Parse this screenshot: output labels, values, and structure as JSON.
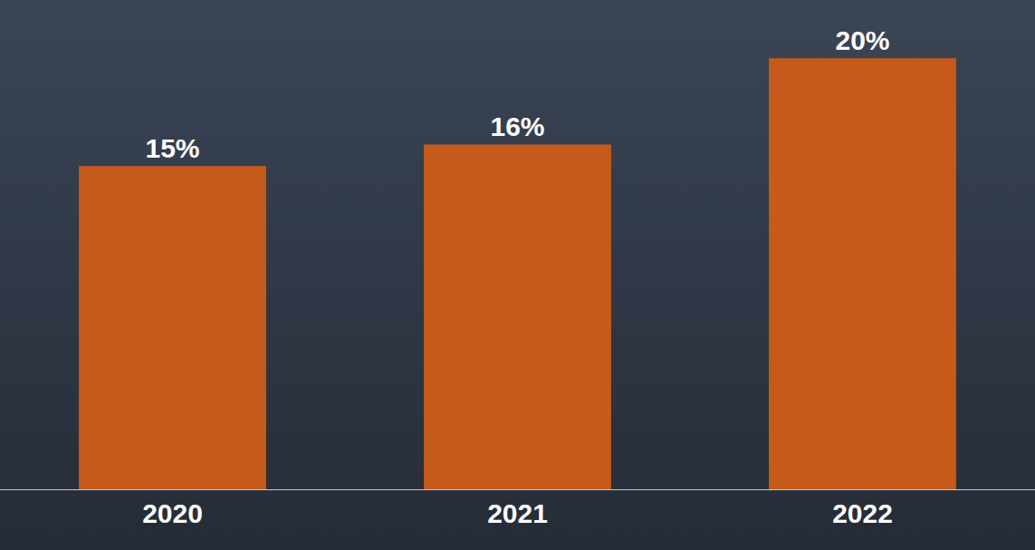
{
  "chart_data": {
    "type": "bar",
    "categories": [
      "2020",
      "2021",
      "2022"
    ],
    "values": [
      15,
      16,
      20
    ],
    "value_labels": [
      "15%",
      "16%",
      "20%"
    ],
    "color": "#c55a1a",
    "ylim": [
      0,
      22.7
    ],
    "data_labels": true,
    "tick_labels": "x",
    "grid": false
  }
}
